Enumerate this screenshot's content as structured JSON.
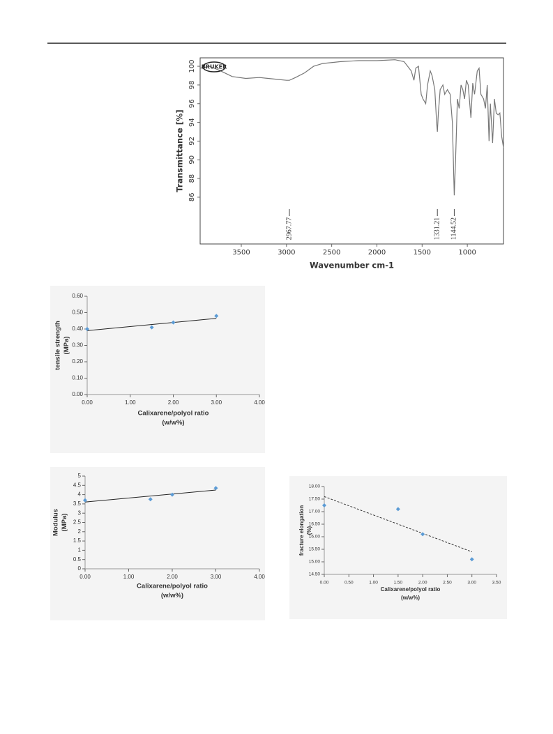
{
  "chart_data": [
    {
      "type": "line",
      "logo_text": "BRUKER",
      "y_label": [
        "Transmittance [%]"
      ],
      "x_label": [
        "Wavenumber cm-1"
      ],
      "xlim": [
        3955,
        600
      ],
      "xticks": [
        3500,
        3000,
        2500,
        2000,
        1500,
        1000
      ],
      "ylim": [
        81,
        100.9
      ],
      "yticks": [
        86,
        88,
        90,
        92,
        94,
        96,
        98,
        100
      ],
      "color": "#777777",
      "x": [
        3955,
        3850,
        3750,
        3600,
        3450,
        3300,
        3100,
        3000,
        2967.77,
        2900,
        2800,
        2700,
        2600,
        2400,
        2200,
        2000,
        1800,
        1700,
        1620,
        1590,
        1570,
        1540,
        1510,
        1490,
        1460,
        1440,
        1410,
        1390,
        1360,
        1340,
        1331.21,
        1320,
        1300,
        1270,
        1250,
        1220,
        1190,
        1165,
        1144.52,
        1130,
        1110,
        1090,
        1070,
        1050,
        1030,
        1010,
        990,
        960,
        940,
        920,
        890,
        870,
        850,
        820,
        800,
        780,
        760,
        745,
        720,
        700,
        680,
        660,
        640,
        620,
        600
      ],
      "values": [
        99.8,
        100,
        99.6,
        98.9,
        98.7,
        98.8,
        98.6,
        98.5,
        98.5,
        98.8,
        99.3,
        100,
        100.3,
        100.5,
        100.6,
        100.6,
        100.7,
        100.5,
        99.5,
        98.5,
        99.8,
        100,
        97.0,
        96.5,
        96.0,
        98.0,
        99.5,
        99.0,
        97.5,
        94.0,
        93.0,
        95.0,
        97.5,
        98.0,
        97.0,
        97.5,
        97.0,
        94.0,
        86.2,
        90.0,
        96.5,
        95.5,
        98.0,
        97.5,
        96.5,
        98.5,
        98.0,
        94.5,
        98.2,
        97.0,
        99.5,
        99.8,
        97.0,
        96.5,
        95.5,
        98.0,
        92.0,
        96.0,
        91.8,
        96.5,
        95.0,
        94.8,
        95.0,
        92.5,
        91.3
      ],
      "annotations": [
        {
          "x": 2967.77
        },
        {
          "x": 1331.21
        },
        {
          "x": 1144.52
        }
      ]
    },
    {
      "type": "scatter",
      "y_label": [
        "tensile strength",
        "(MPa)"
      ],
      "x_label": [
        "Calixarene/polyol ratio",
        "(w/w%)"
      ],
      "xlim": [
        0,
        4
      ],
      "xticks": [
        {
          "value": 0,
          "label": "0.00"
        },
        {
          "value": 1,
          "label": "1.00"
        },
        {
          "value": 2,
          "label": "2.00"
        },
        {
          "value": 3,
          "label": "3.00"
        },
        {
          "value": 4,
          "label": "4.00"
        }
      ],
      "ylim": [
        0,
        0.6
      ],
      "yticks": [
        {
          "value": 0,
          "label": "0.00"
        },
        {
          "value": 0.1,
          "label": "0.10"
        },
        {
          "value": 0.2,
          "label": "0.20"
        },
        {
          "value": 0.3,
          "label": "0.30"
        },
        {
          "value": 0.4,
          "label": "0.40"
        },
        {
          "value": 0.5,
          "label": "0.50"
        },
        {
          "value": 0.6,
          "label": "0.60"
        }
      ],
      "color": "#5b9bd5",
      "x": [
        0,
        1.5,
        2,
        3
      ],
      "values": [
        0.4,
        0.41,
        0.44,
        0.48
      ],
      "trendline": {
        "color": "#222222",
        "dashed": false,
        "x": [
          0,
          3
        ],
        "y": [
          0.39,
          0.465
        ]
      }
    },
    {
      "type": "scatter",
      "y_label": [
        "Modulus",
        "(MPa)"
      ],
      "x_label": [
        "Calixarene/polyol ratio",
        "(w/w%)"
      ],
      "xlim": [
        0,
        4
      ],
      "xticks": [
        {
          "value": 0,
          "label": "0.00"
        },
        {
          "value": 1,
          "label": "1.00"
        },
        {
          "value": 2,
          "label": "2.00"
        },
        {
          "value": 3,
          "label": "3.00"
        },
        {
          "value": 4,
          "label": "4.00"
        }
      ],
      "ylim": [
        0,
        5
      ],
      "yticks": [
        0,
        0.5,
        1,
        1.5,
        2,
        2.5,
        3,
        3.5,
        4,
        4.5,
        5
      ],
      "color": "#5b9bd5",
      "x": [
        0,
        1.5,
        2,
        3
      ],
      "values": [
        3.7,
        3.75,
        4.0,
        4.35
      ],
      "trendline": {
        "color": "#222222",
        "dashed": false,
        "x": [
          0,
          3
        ],
        "y": [
          3.6,
          4.25
        ]
      }
    },
    {
      "type": "scatter",
      "y_label": [
        "fracture elongation",
        "(%)"
      ],
      "x_label": [
        "Calixarene/polyol ratio",
        "(w/w%)"
      ],
      "xlim": [
        0,
        3.5
      ],
      "xticks": [
        {
          "value": 0,
          "label": "0.00"
        },
        {
          "value": 0.5,
          "label": "0.50"
        },
        {
          "value": 1,
          "label": "1.00"
        },
        {
          "value": 1.5,
          "label": "1.50"
        },
        {
          "value": 2,
          "label": "2.00"
        },
        {
          "value": 2.5,
          "label": "2.50"
        },
        {
          "value": 3,
          "label": "3.00"
        },
        {
          "value": 3.5,
          "label": "3.50"
        }
      ],
      "ylim": [
        14.5,
        18
      ],
      "yticks": [
        {
          "value": 14.5,
          "label": "14.50"
        },
        {
          "value": 15,
          "label": "15.00"
        },
        {
          "value": 15.5,
          "label": "15.50"
        },
        {
          "value": 16,
          "label": "16.00"
        },
        {
          "value": 16.5,
          "label": "16.50"
        },
        {
          "value": 17,
          "label": "17.00"
        },
        {
          "value": 17.5,
          "label": "17.50"
        },
        {
          "value": 18,
          "label": "18.00"
        }
      ],
      "color": "#5b9bd5",
      "x": [
        0,
        1.5,
        2,
        3
      ],
      "values": [
        17.25,
        17.1,
        16.1,
        15.1
      ],
      "trendline": {
        "color": "#333333",
        "dashed": true,
        "x": [
          0,
          3
        ],
        "y": [
          17.6,
          15.4
        ]
      }
    }
  ]
}
